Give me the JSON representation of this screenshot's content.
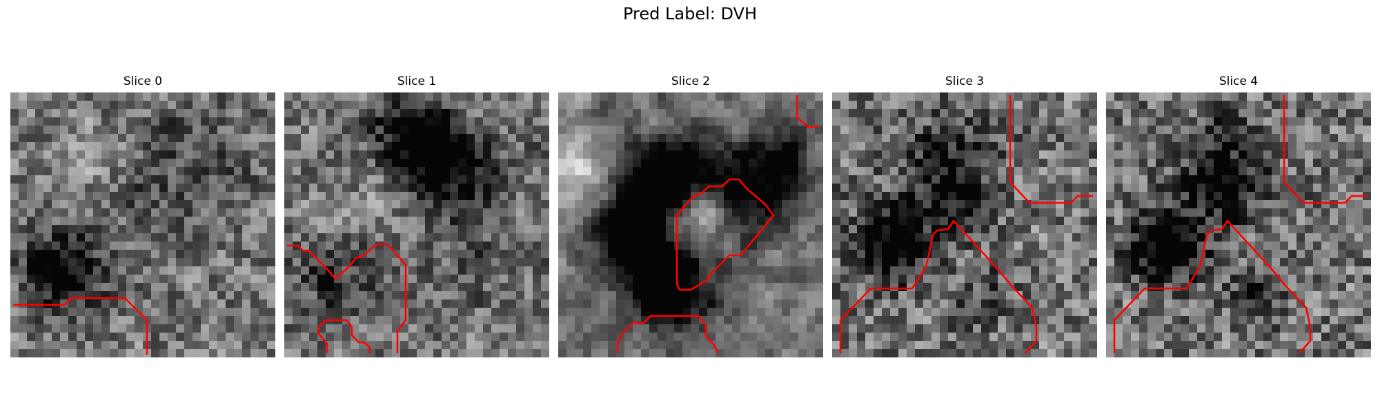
{
  "title": "Pred Label: DVH",
  "slices": [
    {
      "label": "Slice 0"
    },
    {
      "label": "Slice 1"
    },
    {
      "label": "Slice 2"
    },
    {
      "label": "Slice 3"
    },
    {
      "label": "Slice 4"
    }
  ],
  "contour_color": "#ff0000"
}
